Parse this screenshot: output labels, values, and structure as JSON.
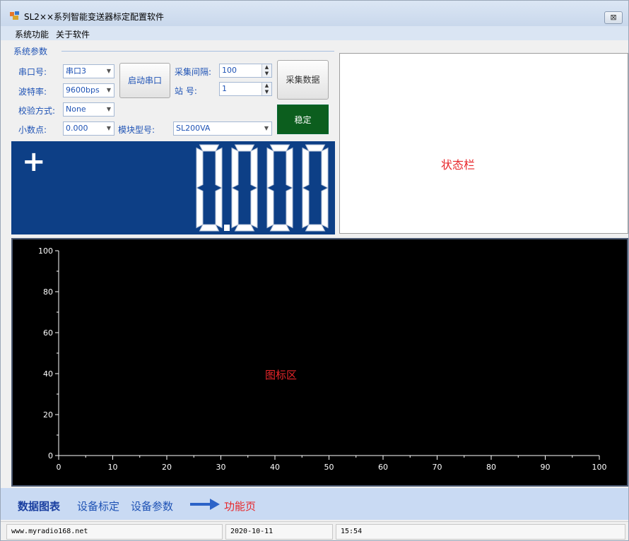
{
  "window": {
    "title": "SL2××系列智能变送器标定配置软件",
    "close_glyph": "⊠"
  },
  "menu": {
    "items": [
      {
        "label": "系统功能"
      },
      {
        "label": "关于软件"
      }
    ]
  },
  "params": {
    "group_title": "系统参数",
    "port": {
      "label": "串口号:",
      "value": "串口3"
    },
    "baud": {
      "label": "波特率:",
      "value": "9600bps"
    },
    "parity": {
      "label": "校验方式:",
      "value": "None"
    },
    "decimal": {
      "label": "小数点:",
      "value": "0.000"
    },
    "interval": {
      "label": "采集间隔:",
      "value": "100"
    },
    "station": {
      "label": "站  号:",
      "value": "1"
    },
    "model": {
      "label": "模块型号:",
      "value": "SL200VA"
    },
    "open_port_label": "启动串口",
    "collect_label": "采集数据",
    "stable_label": "稳定"
  },
  "display": {
    "sign": "+",
    "value": "0.000"
  },
  "status_panel": {
    "text": "状态栏"
  },
  "chart_panel": {
    "annotation": "图标区"
  },
  "chart_data": {
    "type": "line",
    "title": "",
    "xlabel": "",
    "ylabel": "",
    "xlim": [
      0,
      100
    ],
    "ylim": [
      0,
      100
    ],
    "x_ticks": [
      0,
      10,
      20,
      30,
      40,
      50,
      60,
      70,
      80,
      90,
      100
    ],
    "y_ticks": [
      0,
      20,
      40,
      60,
      80,
      100
    ],
    "series": [],
    "background": "#000000",
    "axis_color": "#ffffff",
    "grid": false
  },
  "tabs": [
    {
      "label": "数据图表",
      "active": true
    },
    {
      "label": "设备标定",
      "active": false
    },
    {
      "label": "设备参数",
      "active": false
    }
  ],
  "tabs_annotation": "功能页",
  "statusbar": {
    "website": "www.myradio168.net",
    "date": "2020-10-11",
    "time": "15:54"
  },
  "colors": {
    "display_bg": "#0d3f86",
    "accent_text": "#1f53b5",
    "annotation_red": "#e8262a",
    "stable_green": "#0c5e1e"
  }
}
